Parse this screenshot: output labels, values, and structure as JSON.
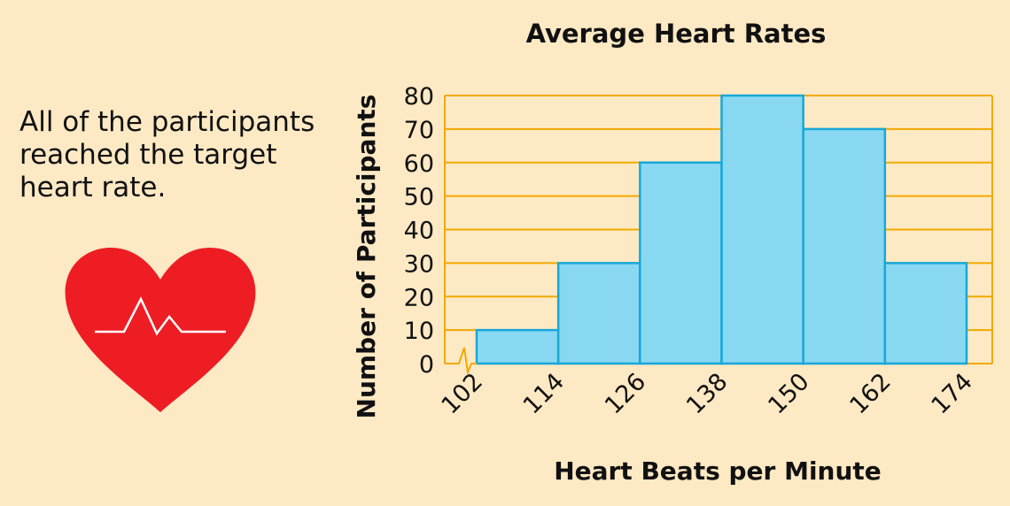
{
  "caption": "All of the participants\nreached the target\nheart rate.",
  "heart_icon": {
    "name": "heart-with-pulse-icon",
    "fill": "#ee1d24",
    "line": "#ffffff"
  },
  "colors": {
    "background": "#fde9c4",
    "grid": "#f2a900",
    "bar_fill": "#89d8f2",
    "bar_stroke": "#17a8d9"
  },
  "chart_data": {
    "type": "bar",
    "title": "Average Heart Rates",
    "xlabel": "Heart Beats per Minute",
    "ylabel": "Number of  Participants",
    "bins": [
      [
        102,
        114
      ],
      [
        114,
        126
      ],
      [
        126,
        138
      ],
      [
        138,
        150
      ],
      [
        150,
        162
      ],
      [
        162,
        174
      ]
    ],
    "values": [
      10,
      30,
      60,
      80,
      70,
      30
    ],
    "x_ticks": [
      "102",
      "114",
      "126",
      "138",
      "150",
      "162",
      "174"
    ],
    "y_ticks": [
      "0",
      "10",
      "20",
      "30",
      "40",
      "50",
      "60",
      "70",
      "80"
    ],
    "ylim": [
      0,
      80
    ],
    "xlim": [
      102,
      174
    ],
    "grid": true,
    "x_axis_break": true
  }
}
